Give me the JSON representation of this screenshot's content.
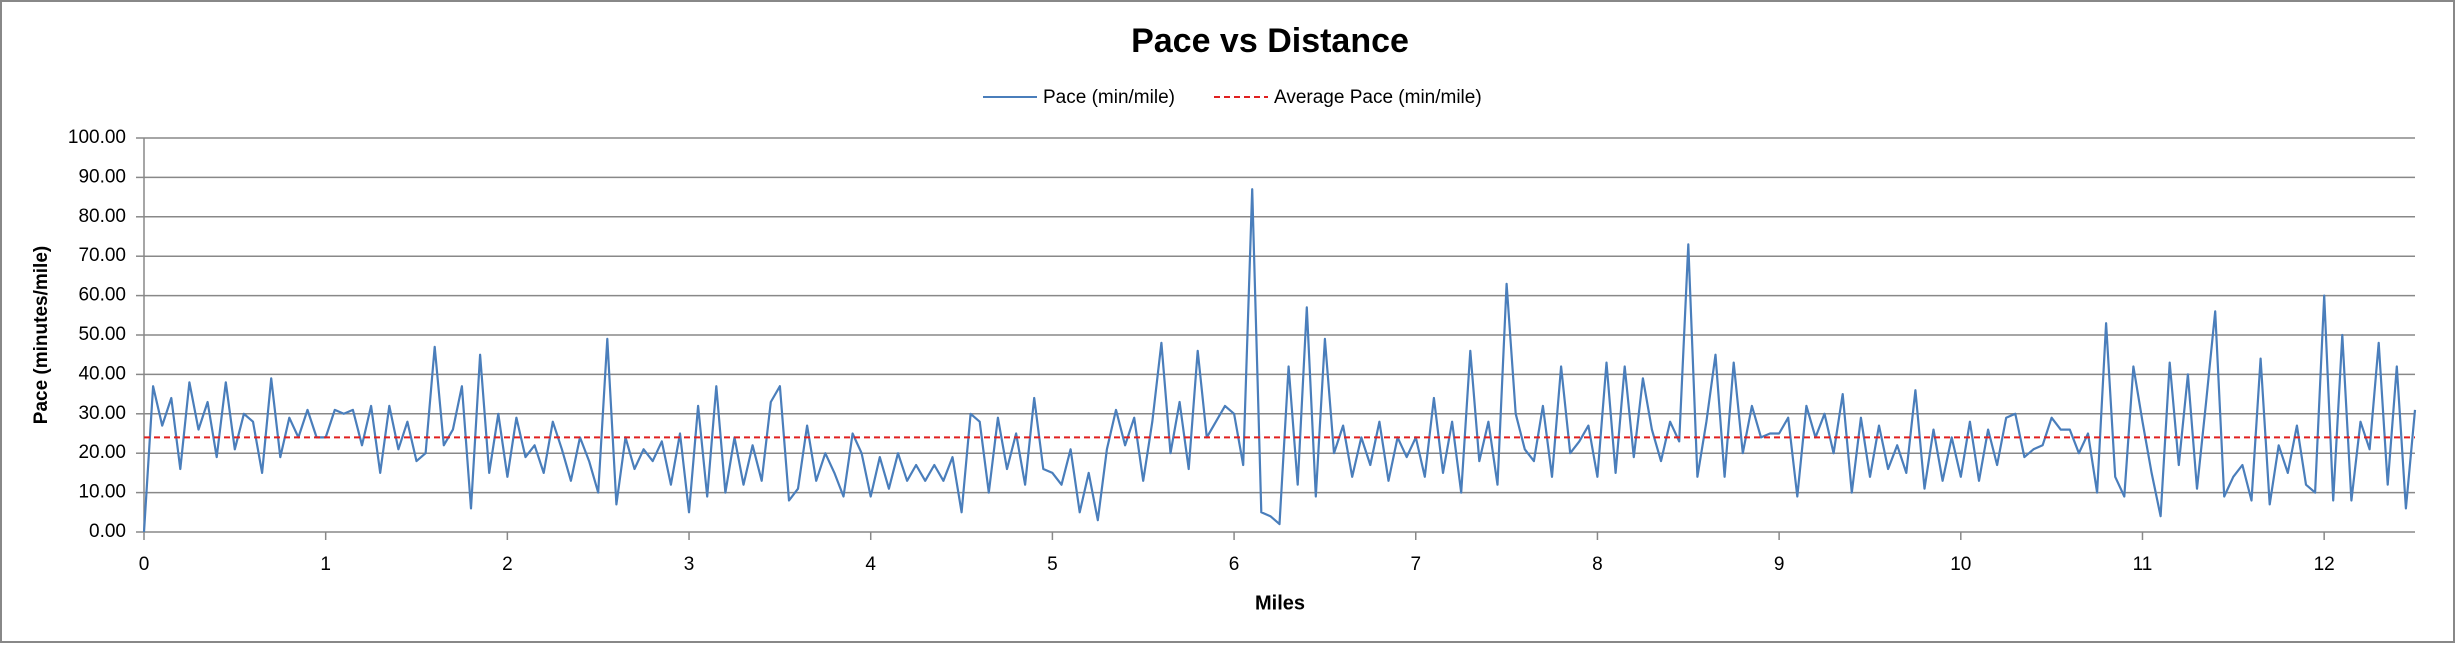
{
  "chart_data": {
    "type": "line",
    "title": "Pace vs Distance",
    "x_label": "Miles",
    "y_label": "Pace (minutes/mile)",
    "xlim": [
      0,
      12.5
    ],
    "xticks": [
      0,
      1,
      2,
      3,
      4,
      5,
      6,
      7,
      8,
      9,
      10,
      11,
      12
    ],
    "ylim": [
      0,
      100
    ],
    "yticks": [
      {
        "value": 0,
        "label": "0.00"
      },
      {
        "value": 10,
        "label": "10.00"
      },
      {
        "value": 20,
        "label": "20.00"
      },
      {
        "value": 30,
        "label": "30.00"
      },
      {
        "value": 40,
        "label": "40.00"
      },
      {
        "value": 50,
        "label": "50.00"
      },
      {
        "value": 60,
        "label": "60.00"
      },
      {
        "value": 70,
        "label": "70.00"
      },
      {
        "value": 80,
        "label": "80.00"
      },
      {
        "value": 90,
        "label": "90.00"
      },
      {
        "value": 100,
        "label": "100.00"
      }
    ],
    "grid": true,
    "legend": "top",
    "series": [
      {
        "name": "Pace (min/mile)",
        "color": "#4a7ebb",
        "dash": false,
        "x": [
          0,
          0.05,
          0.1,
          0.15,
          0.2,
          0.25,
          0.3,
          0.35,
          0.4,
          0.45,
          0.5,
          0.55,
          0.6,
          0.65,
          0.7,
          0.75,
          0.8,
          0.85,
          0.9,
          0.95,
          1,
          1.05,
          1.1,
          1.15,
          1.2,
          1.25,
          1.3,
          1.35,
          1.4,
          1.45,
          1.5,
          1.55,
          1.6,
          1.65,
          1.7,
          1.75,
          1.8,
          1.85,
          1.9,
          1.95,
          2,
          2.05,
          2.1,
          2.15,
          2.2,
          2.25,
          2.3,
          2.35,
          2.4,
          2.45,
          2.5,
          2.55,
          2.6,
          2.65,
          2.7,
          2.75,
          2.8,
          2.85,
          2.9,
          2.95,
          3,
          3.05,
          3.1,
          3.15,
          3.2,
          3.25,
          3.3,
          3.35,
          3.4,
          3.45,
          3.5,
          3.55,
          3.6,
          3.65,
          3.7,
          3.75,
          3.8,
          3.85,
          3.9,
          3.95,
          4,
          4.05,
          4.1,
          4.15,
          4.2,
          4.25,
          4.3,
          4.35,
          4.4,
          4.45,
          4.5,
          4.55,
          4.6,
          4.65,
          4.7,
          4.75,
          4.8,
          4.85,
          4.9,
          4.95,
          5,
          5.05,
          5.1,
          5.15,
          5.2,
          5.25,
          5.3,
          5.35,
          5.4,
          5.45,
          5.5,
          5.55,
          5.6,
          5.65,
          5.7,
          5.75,
          5.8,
          5.85,
          5.9,
          5.95,
          6,
          6.05,
          6.1,
          6.15,
          6.2,
          6.25,
          6.3,
          6.35,
          6.4,
          6.45,
          6.5,
          6.55,
          6.6,
          6.65,
          6.7,
          6.75,
          6.8,
          6.85,
          6.9,
          6.95,
          7,
          7.05,
          7.1,
          7.15,
          7.2,
          7.25,
          7.3,
          7.35,
          7.4,
          7.45,
          7.5,
          7.55,
          7.6,
          7.65,
          7.7,
          7.75,
          7.8,
          7.85,
          7.9,
          7.95,
          8,
          8.05,
          8.1,
          8.15,
          8.2,
          8.25,
          8.3,
          8.35,
          8.4,
          8.45,
          8.5,
          8.55,
          8.6,
          8.65,
          8.7,
          8.75,
          8.8,
          8.85,
          8.9,
          8.95,
          9,
          9.05,
          9.1,
          9.15,
          9.2,
          9.25,
          9.3,
          9.35,
          9.4,
          9.45,
          9.5,
          9.55,
          9.6,
          9.65,
          9.7,
          9.75,
          9.8,
          9.85,
          9.9,
          9.95,
          10,
          10.05,
          10.1,
          10.15,
          10.2,
          10.25,
          10.3,
          10.35,
          10.4,
          10.45,
          10.5,
          10.55,
          10.6,
          10.65,
          10.7,
          10.75,
          10.8,
          10.85,
          10.9,
          10.95,
          11,
          11.05,
          11.1,
          11.15,
          11.2,
          11.25,
          11.3,
          11.35,
          11.4,
          11.45,
          11.5,
          11.55,
          11.6,
          11.65,
          11.7,
          11.75,
          11.8,
          11.85,
          11.9,
          11.95,
          12,
          12.05,
          12.1,
          12.15,
          12.2,
          12.25,
          12.3,
          12.35,
          12.4,
          12.45,
          12.5
        ],
        "values": [
          0,
          37,
          27,
          34,
          16,
          38,
          26,
          33,
          19,
          38,
          21,
          30,
          28,
          15,
          39,
          19,
          29,
          24,
          31,
          24,
          24,
          31,
          30,
          31,
          22,
          32,
          15,
          32,
          21,
          28,
          18,
          20,
          47,
          22,
          26,
          37,
          6,
          45,
          15,
          30,
          14,
          29,
          19,
          22,
          15,
          28,
          21,
          13,
          24,
          18,
          10,
          49,
          7,
          24,
          16,
          21,
          18,
          23,
          12,
          25,
          5,
          32,
          9,
          37,
          10,
          24,
          12,
          22,
          13,
          33,
          37,
          8,
          11,
          27,
          13,
          20,
          15,
          9,
          25,
          20,
          9,
          19,
          11,
          20,
          13,
          17,
          13,
          17,
          13,
          19,
          5,
          30,
          28,
          10,
          29,
          16,
          25,
          12,
          34,
          16,
          15,
          12,
          21,
          5,
          15,
          3,
          21,
          31,
          22,
          29,
          13,
          28,
          48,
          20,
          33,
          16,
          46,
          24,
          28,
          32,
          30,
          17,
          87,
          5,
          4,
          2,
          42,
          12,
          57,
          9,
          49,
          20,
          27,
          14,
          24,
          17,
          28,
          13,
          24,
          19,
          24,
          14,
          34,
          15,
          28,
          10,
          46,
          18,
          28,
          12,
          63,
          30,
          21,
          18,
          32,
          14,
          42,
          20,
          23,
          27,
          14,
          43,
          15,
          42,
          19,
          39,
          26,
          18,
          28,
          23,
          73,
          14,
          28,
          45,
          14,
          43,
          20,
          32,
          24,
          25,
          25,
          29,
          9,
          32,
          24,
          30,
          20,
          35,
          10,
          29,
          14,
          27,
          16,
          22,
          15,
          36,
          11,
          26,
          13,
          24,
          14,
          28,
          13,
          26,
          17,
          29,
          30,
          19,
          21,
          22,
          29,
          26,
          26,
          20,
          25,
          10,
          53,
          14,
          9,
          42,
          28,
          15,
          4,
          43,
          17,
          40,
          11,
          33,
          56,
          9,
          14,
          17,
          8,
          44,
          7,
          22,
          15,
          27,
          12,
          10,
          60,
          8,
          50,
          8,
          28,
          21,
          48,
          12,
          42,
          6,
          31
        ]
      },
      {
        "name": "Average Pace (min/mile)",
        "color": "#e02020",
        "dash": true,
        "x": [
          0,
          12.5
        ],
        "values": [
          24,
          24
        ]
      }
    ]
  }
}
